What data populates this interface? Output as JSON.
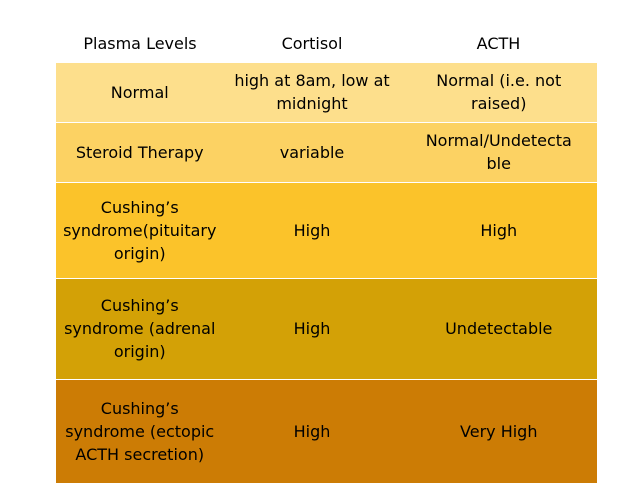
{
  "table": {
    "headers": [
      "Plasma Levels",
      "Cortisol",
      "ACTH"
    ],
    "rows": [
      {
        "label": [
          "Normal"
        ],
        "cortisol": [
          "high at 8am, low at",
          "midnight"
        ],
        "acth": [
          "Normal (i.e. not",
          "raised)"
        ],
        "color": "#fddf8c"
      },
      {
        "label": [
          "Steroid Therapy"
        ],
        "cortisol": [
          "variable"
        ],
        "acth": [
          "Normal/Undetecta",
          "ble"
        ],
        "color": "#fcd263"
      },
      {
        "label": [
          "Cushing’s",
          "syndrome(pituitary",
          "origin)"
        ],
        "cortisol": [
          "High"
        ],
        "acth": [
          "High"
        ],
        "color": "#fbc32a"
      },
      {
        "label": [
          "Cushing’s",
          "syndrome (adrenal",
          "origin)"
        ],
        "cortisol": [
          "High"
        ],
        "acth": [
          "Undetectable"
        ],
        "color": "#d3a106"
      },
      {
        "label": [
          "Cushing’s",
          "syndrome (ectopic",
          "ACTH secretion)"
        ],
        "cortisol": [
          "High"
        ],
        "acth": [
          "Very High"
        ],
        "color": "#cc7c05"
      }
    ]
  }
}
